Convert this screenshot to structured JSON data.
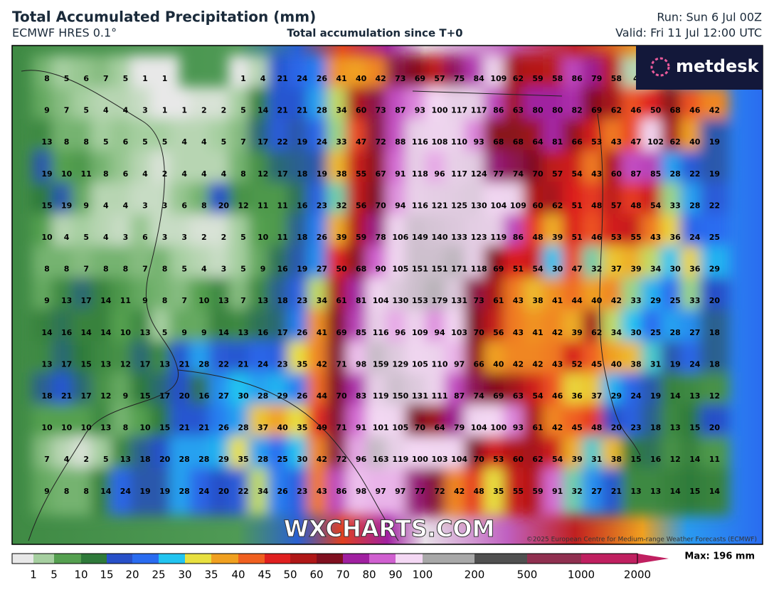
{
  "header": {
    "title": "Total Accumulated Precipitation (mm)",
    "model": "ECMWF HRES 0.1°",
    "subtitle": "Total accumulation since T+0",
    "run": "Run: Sun 6 Jul 00Z",
    "valid": "Valid: Fri 11 Jul 12:00 UTC"
  },
  "logo": "metdesk",
  "watermark": "WXCHARTS.COM",
  "credit": "©2025 European Centre for Medium-range Weather Forecasts (ECMWF)",
  "grid": {
    "rows": [
      [
        8,
        5,
        6,
        7,
        5,
        1,
        1,
        null,
        null,
        null,
        1,
        4,
        21,
        24,
        26,
        41,
        40,
        42,
        73,
        69,
        57,
        75,
        84,
        109,
        62,
        59,
        58,
        86,
        79,
        58,
        4,
        null,
        null,
        null,
        null
      ],
      [
        9,
        7,
        5,
        4,
        4,
        3,
        1,
        1,
        2,
        2,
        5,
        14,
        21,
        21,
        28,
        34,
        60,
        73,
        87,
        93,
        100,
        117,
        117,
        86,
        63,
        80,
        80,
        82,
        69,
        62,
        46,
        50,
        68,
        46,
        42
      ],
      [
        13,
        8,
        8,
        5,
        6,
        5,
        5,
        4,
        4,
        5,
        7,
        17,
        22,
        19,
        24,
        33,
        47,
        72,
        88,
        116,
        108,
        110,
        93,
        68,
        68,
        64,
        81,
        66,
        53,
        43,
        47,
        102,
        62,
        40,
        19
      ],
      [
        19,
        10,
        11,
        8,
        6,
        4,
        2,
        4,
        4,
        4,
        8,
        12,
        17,
        18,
        19,
        38,
        55,
        67,
        91,
        118,
        96,
        117,
        124,
        77,
        74,
        70,
        57,
        54,
        43,
        60,
        87,
        85,
        28,
        22,
        19
      ],
      [
        15,
        19,
        9,
        4,
        4,
        3,
        3,
        6,
        8,
        20,
        12,
        11,
        11,
        16,
        23,
        32,
        56,
        70,
        94,
        116,
        121,
        125,
        130,
        104,
        109,
        60,
        62,
        51,
        48,
        57,
        48,
        54,
        33,
        28,
        22
      ],
      [
        10,
        4,
        5,
        4,
        3,
        6,
        3,
        3,
        2,
        2,
        5,
        10,
        11,
        18,
        26,
        39,
        59,
        78,
        106,
        149,
        140,
        133,
        123,
        119,
        86,
        48,
        39,
        51,
        46,
        53,
        55,
        43,
        36,
        24,
        25
      ],
      [
        8,
        8,
        7,
        8,
        8,
        7,
        8,
        5,
        4,
        3,
        5,
        9,
        16,
        19,
        27,
        50,
        68,
        90,
        105,
        151,
        151,
        171,
        118,
        69,
        51,
        54,
        30,
        47,
        32,
        37,
        39,
        34,
        30,
        36,
        29
      ],
      [
        9,
        13,
        17,
        14,
        11,
        9,
        8,
        7,
        10,
        13,
        7,
        13,
        18,
        23,
        34,
        61,
        81,
        104,
        130,
        153,
        179,
        131,
        73,
        61,
        43,
        38,
        41,
        44,
        40,
        42,
        33,
        29,
        25,
        33,
        20
      ],
      [
        14,
        16,
        14,
        14,
        10,
        13,
        5,
        9,
        9,
        14,
        13,
        16,
        17,
        26,
        41,
        69,
        85,
        116,
        96,
        109,
        94,
        103,
        70,
        56,
        43,
        41,
        42,
        39,
        62,
        34,
        30,
        25,
        28,
        27,
        18
      ],
      [
        13,
        17,
        15,
        13,
        12,
        17,
        13,
        21,
        28,
        22,
        21,
        24,
        23,
        35,
        42,
        71,
        98,
        159,
        129,
        105,
        110,
        97,
        66,
        40,
        42,
        42,
        43,
        52,
        45,
        40,
        38,
        31,
        19,
        24,
        18
      ],
      [
        18,
        21,
        17,
        12,
        9,
        15,
        17,
        20,
        16,
        27,
        30,
        28,
        29,
        26,
        44,
        70,
        83,
        119,
        150,
        131,
        111,
        87,
        74,
        69,
        63,
        54,
        46,
        36,
        37,
        29,
        24,
        19,
        14,
        13,
        12
      ],
      [
        10,
        10,
        10,
        13,
        8,
        10,
        15,
        21,
        21,
        26,
        28,
        37,
        40,
        35,
        49,
        71,
        91,
        101,
        105,
        70,
        64,
        79,
        104,
        100,
        93,
        61,
        42,
        45,
        48,
        20,
        23,
        18,
        13,
        15,
        20
      ],
      [
        7,
        4,
        2,
        5,
        13,
        18,
        20,
        28,
        28,
        29,
        35,
        28,
        25,
        30,
        42,
        72,
        96,
        163,
        119,
        100,
        103,
        104,
        70,
        53,
        60,
        62,
        54,
        39,
        31,
        38,
        15,
        16,
        12,
        14,
        11
      ],
      [
        9,
        8,
        8,
        14,
        24,
        19,
        19,
        28,
        24,
        20,
        22,
        34,
        26,
        23,
        43,
        86,
        98,
        97,
        97,
        77,
        72,
        42,
        48,
        35,
        55,
        59,
        91,
        32,
        27,
        21,
        13,
        13,
        14,
        15,
        14
      ]
    ]
  },
  "colorbar": {
    "ticks": [
      1,
      5,
      10,
      15,
      20,
      25,
      30,
      35,
      40,
      45,
      50,
      60,
      70,
      80,
      90,
      100,
      200,
      500,
      1000,
      2000
    ],
    "colors": [
      "#e8e8e8",
      "#a6cfa0",
      "#55a050",
      "#2f7a3a",
      "#2850c8",
      "#2a6cf0",
      "#22c4f0",
      "#e8e040",
      "#f0a020",
      "#f06020",
      "#e02020",
      "#b01818",
      "#801020",
      "#a020a0",
      "#d060d0",
      "#f4d8f4",
      "#a8a8a8",
      "#505050",
      "#903050",
      "#c02060"
    ],
    "max_label": "Max: 196 mm"
  }
}
